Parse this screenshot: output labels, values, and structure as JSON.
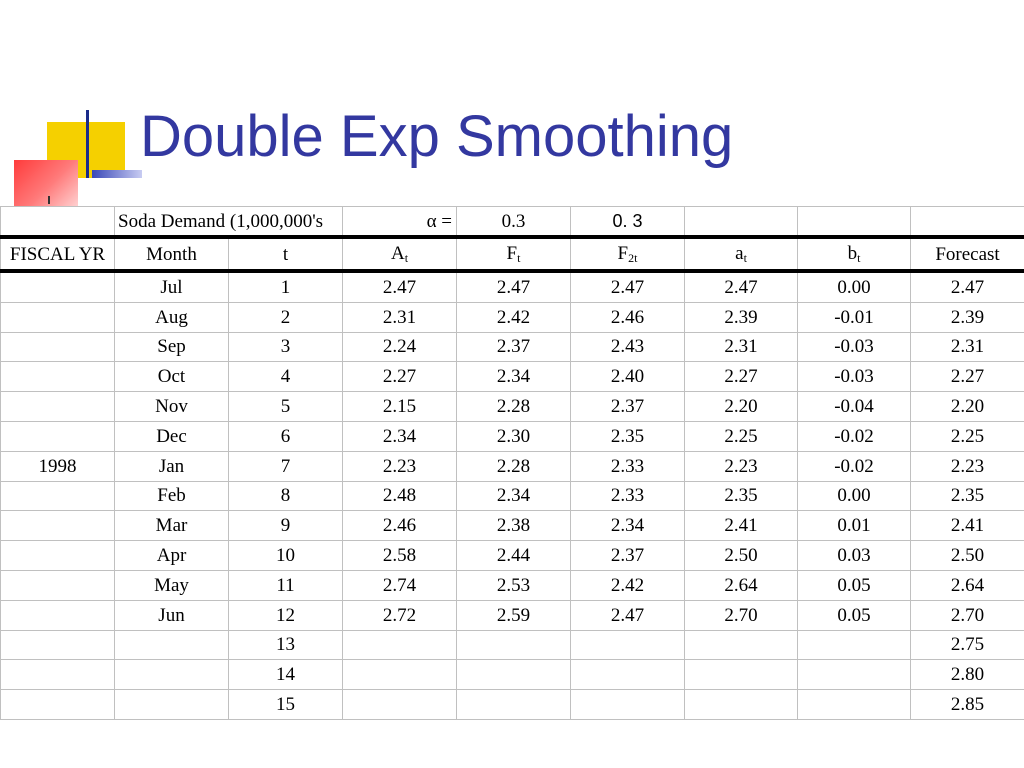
{
  "slide": {
    "title": "Double Exp Smoothing"
  },
  "param_row": {
    "demand_label": "Soda Demand (1,000,000's",
    "alpha_symbol": "α",
    "alpha_eq": " =",
    "alpha_value": "0.3",
    "alpha_value_display": "0. 3"
  },
  "headers": {
    "fiscal_yr": "FISCAL YR",
    "month": "Month",
    "t": "t",
    "A": {
      "base": "A",
      "sub": "t"
    },
    "F": {
      "base": "F",
      "sub": "t"
    },
    "F2": {
      "base": "F",
      "sub": "2t"
    },
    "a": {
      "base": "a",
      "sub": "t"
    },
    "b": {
      "base": "b",
      "sub": "t"
    },
    "forecast": "Forecast"
  },
  "rows": [
    {
      "fy": "",
      "month": "Jul",
      "t": "1",
      "A": "2.47",
      "F": "2.47",
      "F2": "2.47",
      "a": "2.47",
      "b": "0.00",
      "forecast": "2.47"
    },
    {
      "fy": "",
      "month": "Aug",
      "t": "2",
      "A": "2.31",
      "F": "2.42",
      "F2": "2.46",
      "a": "2.39",
      "b": "-0.01",
      "forecast": "2.39"
    },
    {
      "fy": "",
      "month": "Sep",
      "t": "3",
      "A": "2.24",
      "F": "2.37",
      "F2": "2.43",
      "a": "2.31",
      "b": "-0.03",
      "forecast": "2.31"
    },
    {
      "fy": "",
      "month": "Oct",
      "t": "4",
      "A": "2.27",
      "F": "2.34",
      "F2": "2.40",
      "a": "2.27",
      "b": "-0.03",
      "forecast": "2.27"
    },
    {
      "fy": "",
      "month": "Nov",
      "t": "5",
      "A": "2.15",
      "F": "2.28",
      "F2": "2.37",
      "a": "2.20",
      "b": "-0.04",
      "forecast": "2.20"
    },
    {
      "fy": "",
      "month": "Dec",
      "t": "6",
      "A": "2.34",
      "F": "2.30",
      "F2": "2.35",
      "a": "2.25",
      "b": "-0.02",
      "forecast": "2.25"
    },
    {
      "fy": "1998",
      "month": "Jan",
      "t": "7",
      "A": "2.23",
      "F": "2.28",
      "F2": "2.33",
      "a": "2.23",
      "b": "-0.02",
      "forecast": "2.23"
    },
    {
      "fy": "",
      "month": "Feb",
      "t": "8",
      "A": "2.48",
      "F": "2.34",
      "F2": "2.33",
      "a": "2.35",
      "b": "0.00",
      "forecast": "2.35"
    },
    {
      "fy": "",
      "month": "Mar",
      "t": "9",
      "A": "2.46",
      "F": "2.38",
      "F2": "2.34",
      "a": "2.41",
      "b": "0.01",
      "forecast": "2.41"
    },
    {
      "fy": "",
      "month": "Apr",
      "t": "10",
      "A": "2.58",
      "F": "2.44",
      "F2": "2.37",
      "a": "2.50",
      "b": "0.03",
      "forecast": "2.50"
    },
    {
      "fy": "",
      "month": "May",
      "t": "11",
      "A": "2.74",
      "F": "2.53",
      "F2": "2.42",
      "a": "2.64",
      "b": "0.05",
      "forecast": "2.64"
    },
    {
      "fy": "",
      "month": "Jun",
      "t": "12",
      "A": "2.72",
      "F": "2.59",
      "F2": "2.47",
      "a": "2.70",
      "b": "0.05",
      "forecast": "2.70"
    },
    {
      "fy": "",
      "month": "",
      "t": "13",
      "A": "",
      "F": "",
      "F2": "",
      "a": "",
      "b": "",
      "forecast": "2.75"
    },
    {
      "fy": "",
      "month": "",
      "t": "14",
      "A": "",
      "F": "",
      "F2": "",
      "a": "",
      "b": "",
      "forecast": "2.80"
    },
    {
      "fy": "",
      "month": "",
      "t": "15",
      "A": "",
      "F": "",
      "F2": "",
      "a": "",
      "b": "",
      "forecast": "2.85"
    }
  ]
}
